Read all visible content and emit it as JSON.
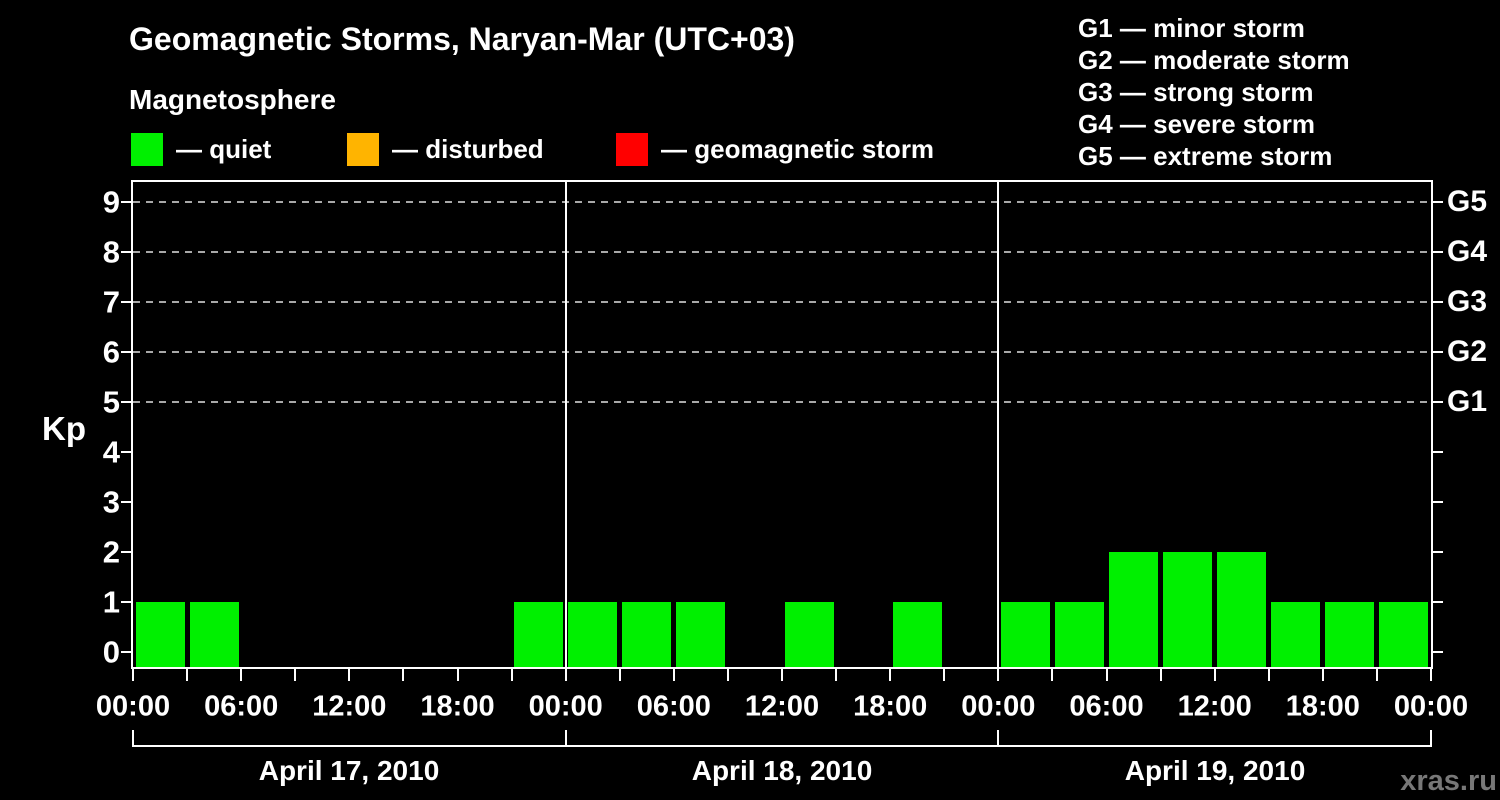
{
  "title": "Geomagnetic Storms, Naryan-Mar (UTC+03)",
  "watermark": "xras.ru",
  "legend": {
    "heading": "Magnetosphere",
    "items": [
      {
        "name": "quiet",
        "label": "— quiet",
        "color": "#00f000"
      },
      {
        "name": "disturbed",
        "label": "— disturbed",
        "color": "#ffb400"
      },
      {
        "name": "geomagnetic-storm",
        "label": "— geomagnetic storm",
        "color": "#ff0000"
      }
    ]
  },
  "storm_scale_legend": [
    "G1 — minor storm",
    "G2 — moderate storm",
    "G3 — strong storm",
    "G4 — severe storm",
    "G5 — extreme storm"
  ],
  "chart_data": {
    "type": "bar",
    "title": "Geomagnetic Storms, Naryan-Mar (UTC+03)",
    "ylabel": "Kp",
    "xlabel": "",
    "ylim": [
      0,
      9
    ],
    "y_ticks": [
      0,
      1,
      2,
      3,
      4,
      5,
      6,
      7,
      8,
      9
    ],
    "grid": "horizontal dashed lines at Kp 5-9 only (storm levels)",
    "legend_position": "top",
    "interval_hours": 3,
    "bar_color": "#00f000",
    "x_labels": [
      "00:00",
      "06:00",
      "12:00",
      "18:00",
      "00:00",
      "06:00",
      "12:00",
      "18:00",
      "00:00",
      "06:00",
      "12:00",
      "18:00",
      "00:00"
    ],
    "g_levels": [
      {
        "kp": 5,
        "label": "G1"
      },
      {
        "kp": 6,
        "label": "G2"
      },
      {
        "kp": 7,
        "label": "G3"
      },
      {
        "kp": 8,
        "label": "G4"
      },
      {
        "kp": 9,
        "label": "G5"
      }
    ],
    "days": [
      {
        "date": "April 17, 2010",
        "values": [
          1,
          1,
          0,
          0,
          0,
          0,
          0,
          1
        ]
      },
      {
        "date": "April 18, 2010",
        "values": [
          1,
          1,
          1,
          0,
          1,
          0,
          1,
          0
        ]
      },
      {
        "date": "April 19, 2010",
        "values": [
          1,
          1,
          2,
          2,
          2,
          1,
          1,
          1
        ]
      }
    ]
  }
}
